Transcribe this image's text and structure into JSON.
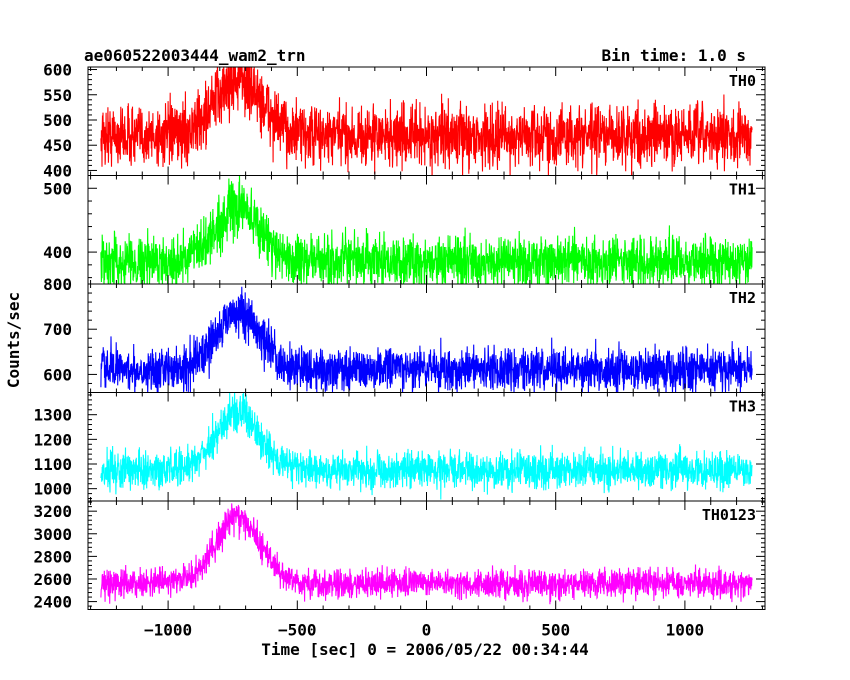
{
  "header": {
    "title": "ae060522003444_wam2_trn",
    "bin_time": "Bin time: 1.0 s"
  },
  "chart_data": {
    "type": "line",
    "xlabel": "Time [sec] 0 = 2006/05/22 00:34:44",
    "ylabel": "Counts/sec",
    "xlim": [
      -1310,
      1310
    ],
    "x_ticks": [
      -1000,
      -500,
      0,
      500,
      1000
    ],
    "x_tick_labels": [
      "−1000",
      "−500",
      "0",
      "500",
      "1000"
    ],
    "x_range": [
      -1260,
      1260
    ],
    "peak_x": -730,
    "panels": [
      {
        "name": "TH0",
        "color": "#ff0000",
        "ylim": [
          390,
          605
        ],
        "yticks": [
          400,
          450,
          500,
          550,
          600
        ],
        "baseline": 468,
        "peak": 580,
        "noise": 30,
        "peak_width": 90
      },
      {
        "name": "TH1",
        "color": "#00ff00",
        "ylim": [
          350,
          520
        ],
        "yticks": [
          400,
          500
        ],
        "baseline": 385,
        "peak": 470,
        "noise": 20,
        "peak_width": 85
      },
      {
        "name": "TH2",
        "color": "#0000ff",
        "ylim": [
          560,
          800
        ],
        "yticks": [
          600,
          700,
          800
        ],
        "baseline": 612,
        "peak": 735,
        "noise": 24,
        "peak_width": 85
      },
      {
        "name": "TH3",
        "color": "#00ffff",
        "ylim": [
          950,
          1390
        ],
        "yticks": [
          1000,
          1100,
          1200,
          1300
        ],
        "baseline": 1075,
        "peak": 1310,
        "noise": 38,
        "peak_width": 85
      },
      {
        "name": "TH0123",
        "color": "#ff00ff",
        "ylim": [
          2330,
          3290
        ],
        "yticks": [
          2400,
          2600,
          2800,
          3000,
          3200
        ],
        "baseline": 2560,
        "peak": 3150,
        "noise": 65,
        "peak_width": 85
      }
    ]
  }
}
